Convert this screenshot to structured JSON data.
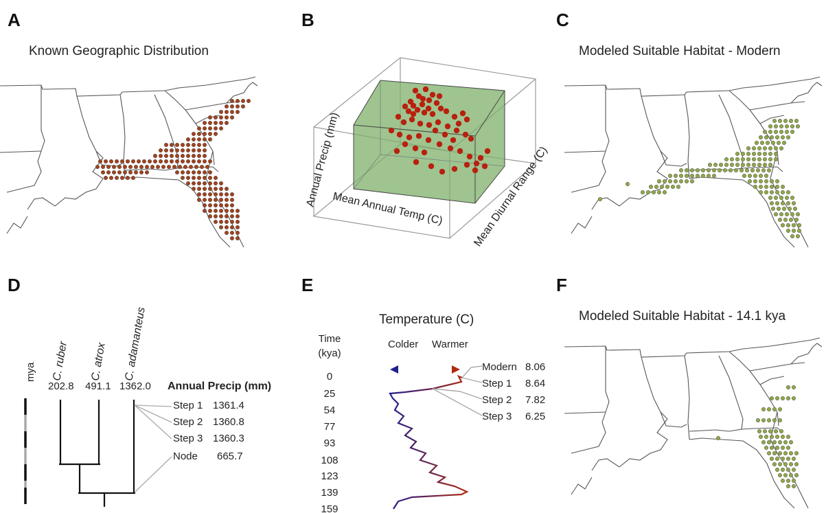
{
  "panels": {
    "A": {
      "letter": "A",
      "title": "Known Geographic Distribution"
    },
    "B": {
      "letter": "B",
      "axes": {
        "x": "Mean Annual Temp (C)",
        "y": "Annual Precip (mm)",
        "z": "Mean Diurnal Range (C)"
      }
    },
    "C": {
      "letter": "C",
      "title": "Modeled Suitable Habitat - Modern"
    },
    "D": {
      "letter": "D",
      "time_axis_label": "mya",
      "species": [
        {
          "name": "C. ruber",
          "value": "202.8"
        },
        {
          "name": "C. atrox",
          "value": "491.1"
        },
        {
          "name": "C. adamanteus",
          "value": "1362.0"
        }
      ],
      "table_header": "Annual Precip (mm)",
      "steps": [
        {
          "label": "Step 1",
          "value": "1361.4"
        },
        {
          "label": "Step 2",
          "value": "1360.8"
        },
        {
          "label": "Step 3",
          "value": "1360.3"
        },
        {
          "label": "Node",
          "value": "665.7"
        }
      ]
    },
    "E": {
      "letter": "E",
      "title": "Temperature (C)",
      "time_label": "Time",
      "time_unit": "(kya)",
      "colder": "Colder",
      "warmer": "Warmer",
      "ticks": [
        "0",
        "25",
        "54",
        "77",
        "93",
        "108",
        "123",
        "139",
        "159"
      ],
      "callouts": [
        {
          "label": "Modern",
          "value": "8.06"
        },
        {
          "label": "Step 1",
          "value": "8.64"
        },
        {
          "label": "Step 2",
          "value": "7.82"
        },
        {
          "label": "Step 3",
          "value": "6.25"
        }
      ]
    },
    "F": {
      "letter": "F",
      "title": "Modeled Suitable Habitat - 14.1 kya"
    }
  },
  "colors": {
    "known_dots": "#a0421e",
    "habitat_dots": "#8fa84a",
    "box_fill": "#7fb06a",
    "scatter_dots": "#b8200f",
    "cold": "#1f1f8f",
    "warm": "#b02a10"
  }
}
